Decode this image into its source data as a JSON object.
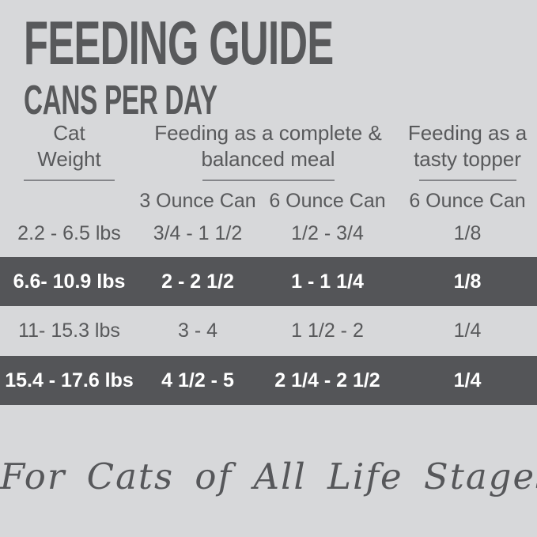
{
  "header": {
    "title": "FEEDING GUIDE",
    "subtitle": "CANS PER DAY"
  },
  "table": {
    "weight_header": {
      "line1": "Cat",
      "line2": "Weight"
    },
    "meal_header": {
      "line1": "Feeding as a complete &",
      "line2": "balanced meal"
    },
    "topper_header": {
      "line1": "Feeding as a",
      "line2": "tasty topper"
    },
    "sub_headers": [
      "3 Ounce Can",
      "6 Ounce Can",
      "6 Ounce Can"
    ],
    "rows": [
      {
        "weight": "2.2 - 6.5 lbs",
        "meal_3oz": "3/4 - 1 1/2",
        "meal_6oz": "1/2 - 3/4",
        "topper_6oz": "1/8",
        "highlighted": false
      },
      {
        "weight": "6.6- 10.9 lbs",
        "meal_3oz": "2 - 2 1/2",
        "meal_6oz": "1 - 1 1/4",
        "topper_6oz": "1/8",
        "highlighted": true
      },
      {
        "weight": "11- 15.3 lbs",
        "meal_3oz": "3 - 4",
        "meal_6oz": "1 1/2 - 2",
        "topper_6oz": "1/4",
        "highlighted": false
      },
      {
        "weight": "15.4 - 17.6 lbs",
        "meal_3oz": "4 1/2 - 5",
        "meal_6oz": "2 1/4 - 2 1/2",
        "topper_6oz": "1/4",
        "highlighted": true
      }
    ]
  },
  "footer": {
    "tagline": "For Cats of All Life Stages"
  },
  "colors": {
    "background": "#d7d8da",
    "text": "#58595b",
    "highlight_row_background": "#545558",
    "highlight_row_text": "#ffffff"
  },
  "chart_data": {
    "type": "table",
    "title": "FEEDING GUIDE",
    "subtitle": "CANS PER DAY",
    "columns": [
      "Cat Weight",
      "Feeding as a complete & balanced meal — 3 Ounce Can",
      "Feeding as a complete & balanced meal — 6 Ounce Can",
      "Feeding as a tasty topper — 6 Ounce Can"
    ],
    "rows": [
      [
        "2.2 - 6.5 lbs",
        "3/4 - 1 1/2",
        "1/2 - 3/4",
        "1/8"
      ],
      [
        "6.6- 10.9 lbs",
        "2 - 2 1/2",
        "1 - 1 1/4",
        "1/8"
      ],
      [
        "11- 15.3 lbs",
        "3 - 4",
        "1 1/2 - 2",
        "1/4"
      ],
      [
        "15.4 - 17.6 lbs",
        "4 1/2 - 5",
        "2 1/4 - 2 1/2",
        "1/4"
      ]
    ],
    "highlighted_row_indices": [
      1,
      3
    ],
    "annotation": "For Cats of All Life Stages"
  }
}
